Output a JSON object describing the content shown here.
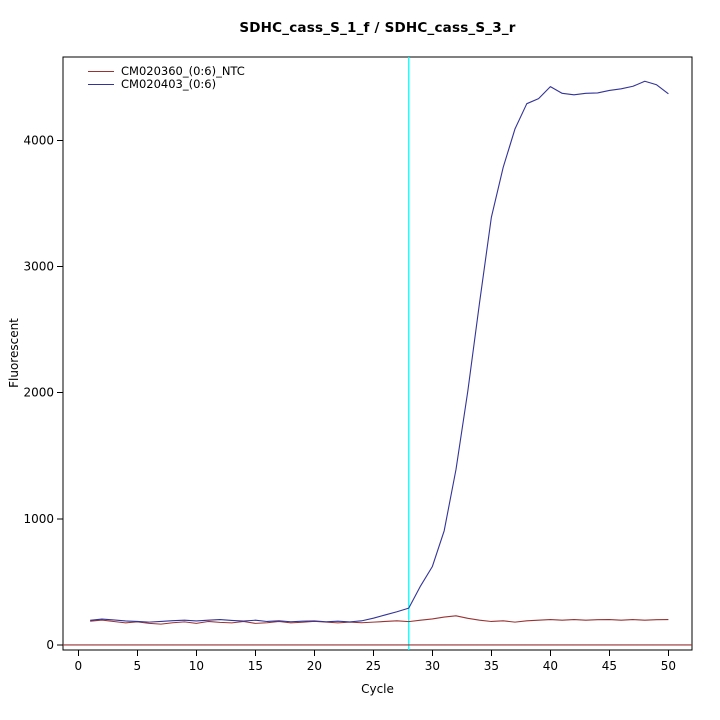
{
  "figure": {
    "background": "#ffffff"
  },
  "chart_data": {
    "type": "line",
    "title": "SDHC_cass_S_1_f / SDHC_cass_S_3_r",
    "xlabel": "Cycle",
    "ylabel": "Fluorescent",
    "xlim": [
      -1.3,
      52
    ],
    "ylim": [
      -40,
      4660
    ],
    "x_ticks": [
      0,
      5,
      10,
      15,
      20,
      25,
      30,
      35,
      40,
      45,
      50
    ],
    "y_ticks": [
      0,
      1000,
      2000,
      3000,
      4000
    ],
    "grid": false,
    "legend_position": "top-left",
    "box_color": "#000000",
    "tick_label_color": "#000000",
    "crossing_line": {
      "x": 28,
      "color": "#00ffff"
    },
    "threshold_line": {
      "y": 0,
      "color": "#993333"
    },
    "cycles": [
      1,
      2,
      3,
      4,
      5,
      6,
      7,
      8,
      9,
      10,
      11,
      12,
      13,
      14,
      15,
      16,
      17,
      18,
      19,
      20,
      21,
      22,
      23,
      24,
      25,
      26,
      27,
      28,
      29,
      30,
      31,
      32,
      33,
      34,
      35,
      36,
      37,
      38,
      39,
      40,
      41,
      42,
      43,
      44,
      45,
      46,
      47,
      48,
      49,
      50
    ],
    "series": [
      {
        "name": "CM020360_(0:6)_NTC",
        "color": "#993333",
        "values": [
          188,
          197,
          186,
          175,
          183,
          171,
          165,
          176,
          183,
          171,
          186,
          179,
          175,
          186,
          171,
          176,
          186,
          175,
          180,
          187,
          181,
          175,
          181,
          176,
          181,
          186,
          191,
          185,
          196,
          206,
          221,
          231,
          211,
          196,
          186,
          191,
          181,
          191,
          196,
          201,
          196,
          201,
          196,
          200,
          201,
          196,
          201,
          196,
          200,
          201
        ]
      },
      {
        "name": "CM020403_(0:6)",
        "color": "#333399",
        "values": [
          195,
          205,
          198,
          190,
          186,
          181,
          186,
          192,
          196,
          190,
          196,
          201,
          194,
          189,
          196,
          186,
          191,
          184,
          188,
          190,
          184,
          188,
          183,
          191,
          212,
          238,
          263,
          292,
          468,
          622,
          905,
          1390,
          2010,
          2715,
          3390,
          3785,
          4090,
          4290,
          4330,
          4425,
          4372,
          4360,
          4372,
          4375,
          4395,
          4408,
          4428,
          4468,
          4440,
          4368
        ]
      }
    ]
  }
}
